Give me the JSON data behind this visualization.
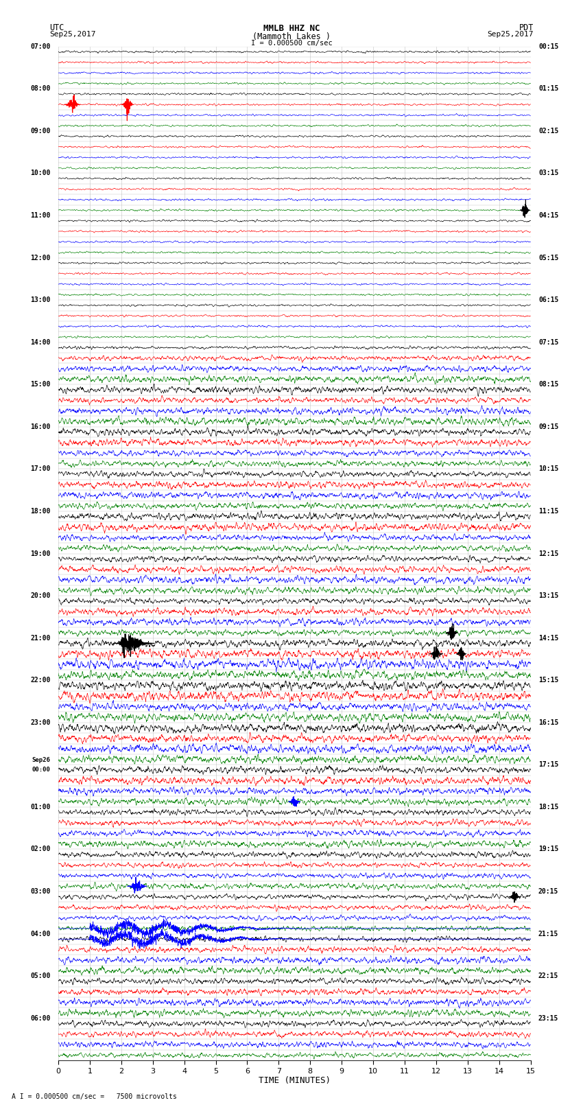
{
  "title_line1": "MMLB HHZ NC",
  "title_line2": "(Mammoth Lakes )",
  "scale_label": "I = 0.000500 cm/sec",
  "bottom_label": "A I = 0.000500 cm/sec =   7500 microvolts",
  "xlabel": "TIME (MINUTES)",
  "xmin": 0,
  "xmax": 15,
  "xticks": [
    0,
    1,
    2,
    3,
    4,
    5,
    6,
    7,
    8,
    9,
    10,
    11,
    12,
    13,
    14,
    15
  ],
  "colors_cycle": [
    "black",
    "red",
    "blue",
    "green"
  ],
  "bg_color": "#ffffff",
  "grid_color": "#aaaaaa",
  "line_width": 0.45,
  "fig_width": 8.5,
  "fig_height": 16.13,
  "dpi": 100,
  "utc_labels": [
    "07:00",
    "08:00",
    "09:00",
    "10:00",
    "11:00",
    "12:00",
    "13:00",
    "14:00",
    "15:00",
    "16:00",
    "17:00",
    "18:00",
    "19:00",
    "20:00",
    "21:00",
    "22:00",
    "23:00",
    "Sep26\n00:00",
    "01:00",
    "02:00",
    "03:00",
    "04:00",
    "05:00",
    "06:00"
  ],
  "pdt_labels": [
    "00:15",
    "01:15",
    "02:15",
    "03:15",
    "04:15",
    "05:15",
    "06:15",
    "07:15",
    "08:15",
    "09:15",
    "10:15",
    "11:15",
    "12:15",
    "13:15",
    "14:15",
    "15:15",
    "16:15",
    "17:15",
    "18:15",
    "19:15",
    "20:15",
    "21:15",
    "22:15",
    "23:15"
  ],
  "num_hours": 24,
  "traces_per_hour": 4,
  "noise_seed": 12345,
  "noise_amplitudes": [
    0.04,
    0.04,
    0.04,
    0.04,
    0.04,
    0.04,
    0.04,
    0.04,
    0.04,
    0.04,
    0.04,
    0.04,
    0.04,
    0.04,
    0.04,
    0.04,
    0.04,
    0.04,
    0.04,
    0.04,
    0.04,
    0.04,
    0.04,
    0.04,
    0.04,
    0.04,
    0.04,
    0.04,
    0.06,
    0.1,
    0.12,
    0.14,
    0.14,
    0.12,
    0.14,
    0.16,
    0.14,
    0.14,
    0.12,
    0.12,
    0.12,
    0.14,
    0.14,
    0.12,
    0.14,
    0.16,
    0.12,
    0.12,
    0.12,
    0.14,
    0.16,
    0.14,
    0.12,
    0.14,
    0.14,
    0.12,
    0.16,
    0.18,
    0.2,
    0.18,
    0.18,
    0.2,
    0.16,
    0.18,
    0.18,
    0.16,
    0.18,
    0.16,
    0.14,
    0.16,
    0.14,
    0.14,
    0.12,
    0.12,
    0.12,
    0.14,
    0.12,
    0.1,
    0.1,
    0.12,
    0.1,
    0.1,
    0.1,
    0.1,
    0.1,
    0.12,
    0.14,
    0.14,
    0.12,
    0.12,
    0.14,
    0.14,
    0.12,
    0.12,
    0.12,
    0.1
  ]
}
